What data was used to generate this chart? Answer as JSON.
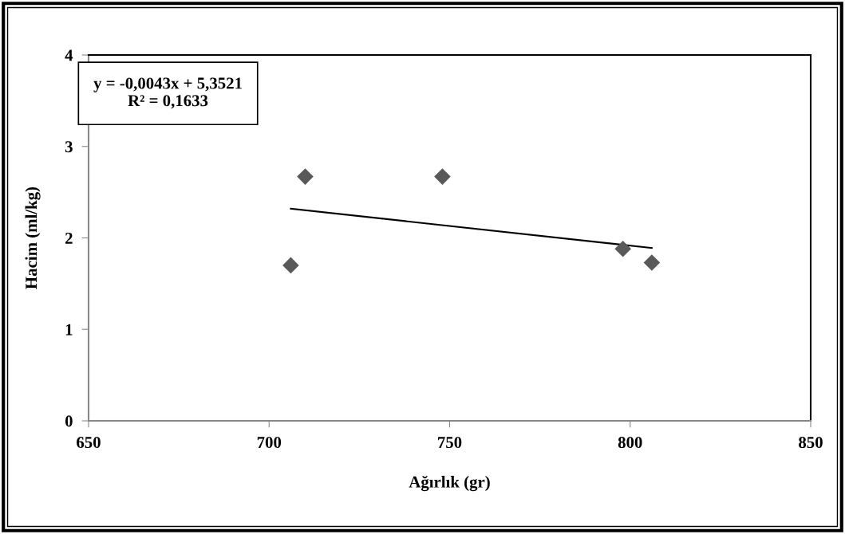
{
  "chart_data": {
    "type": "scatter",
    "xlabel": "Ağırlık (gr)",
    "ylabel": "Hacim (ml/kg)",
    "xlim": [
      650,
      850
    ],
    "xticks": [
      650,
      700,
      750,
      800,
      850
    ],
    "ylim": [
      0,
      4
    ],
    "yticks": [
      0,
      1,
      2,
      3,
      4
    ],
    "grid": false,
    "legend": false,
    "marker": "diamond",
    "annotations": [
      "y = -0,0043x + 5,3521\nR² = 0,1633"
    ],
    "series": [
      {
        "color": "#595959",
        "x": [
          706,
          710,
          748,
          798,
          806
        ],
        "values": [
          1.7,
          2.67,
          2.67,
          1.88,
          1.73
        ]
      },
      {
        "type": "line",
        "color": "#000000",
        "x": [
          706,
          806
        ],
        "values": [
          2.32,
          1.89
        ],
        "marker": "none",
        "line_style": "solid"
      }
    ]
  }
}
